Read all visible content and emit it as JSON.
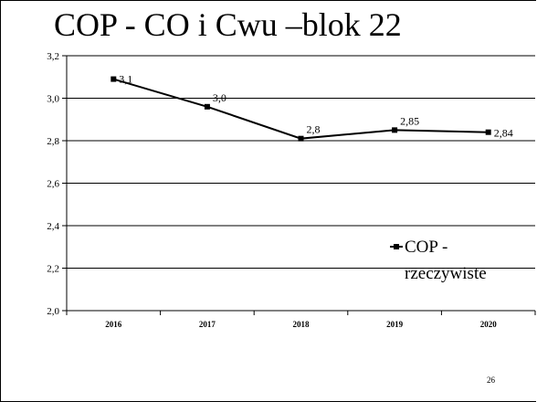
{
  "slide": {
    "title": "COP - CO i Cwu –blok 22",
    "page_number": "26"
  },
  "chart_data": {
    "type": "line",
    "title": "",
    "xlabel": "",
    "ylabel": "",
    "categories": [
      "2016",
      "2017",
      "2018",
      "2019",
      "2020"
    ],
    "ylim": [
      2.0,
      3.2
    ],
    "yticks": [
      "2,0",
      "2,2",
      "2,4",
      "2,6",
      "2,8",
      "3,0",
      "3,2"
    ],
    "grid": true,
    "legend_position": "bottom-right",
    "series": [
      {
        "name": "COP - rzeczywiste",
        "legend_lines": [
          "COP -",
          "rzeczywiste"
        ],
        "values": [
          3.09,
          2.96,
          2.81,
          2.85,
          2.84
        ],
        "data_labels": [
          "3,1",
          "3,0",
          "2,8",
          "2,85",
          "2,84"
        ],
        "color": "#000000"
      }
    ]
  }
}
